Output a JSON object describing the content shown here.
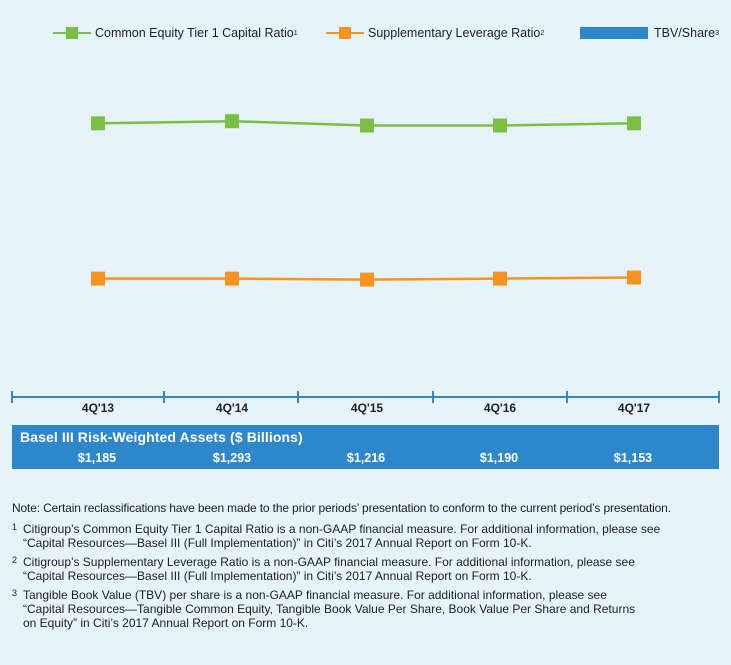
{
  "legend": {
    "cet1": "Common Equity Tier 1 Capital Ratio",
    "cet1_sup": "1",
    "slr": "Supplementary Leverage Ratio",
    "slr_sup": "2",
    "tbv": "TBV/Share",
    "tbv_sup": "3"
  },
  "colors": {
    "cet1": "#7ac143",
    "slr": "#f7941d",
    "tbv": "#2f87cb",
    "axis": "#2f87cb"
  },
  "chart_data": {
    "type": "line",
    "categories": [
      "4Q'13",
      "4Q'14",
      "4Q'15",
      "4Q'16",
      "4Q'17"
    ],
    "series": [
      {
        "name": "Common Equity Tier 1 Capital Ratio",
        "values": [
          12.6,
          12.7,
          12.5,
          12.5,
          12.6
        ]
      },
      {
        "name": "Supplementary Leverage Ratio",
        "values": [
          5.4,
          5.4,
          5.35,
          5.4,
          5.45
        ]
      }
    ],
    "ylim": [
      0,
      16
    ],
    "legend_position": "top",
    "values_shown": false
  },
  "rwa": {
    "title": "Basel III Risk-Weighted Assets ($ Billions)",
    "values": [
      "$1,185",
      "$1,293",
      "$1,216",
      "$1,190",
      "$1,153"
    ]
  },
  "notes": {
    "main": "Note: Certain reclassifications have been made to the prior periods’ presentation to conform to the current period’s presentation.",
    "footnotes": [
      {
        "mark": "1",
        "lines": [
          "Citigroup’s Common Equity Tier 1 Capital Ratio is a non-GAAP financial measure. For additional information, please see",
          "“Capital Resources—Basel III (Full Implementation)” in Citi’s 2017 Annual Report on Form 10-K."
        ]
      },
      {
        "mark": "2",
        "lines": [
          "Citigroup’s Supplementary Leverage Ratio is a non-GAAP financial measure. For additional information, please see",
          "“Capital Resources—Basel III (Full Implementation)” in Citi’s 2017 Annual Report on Form 10-K."
        ]
      },
      {
        "mark": "3",
        "lines": [
          "Tangible Book Value (TBV) per share is a non-GAAP financial measure. For additional information, please see",
          "“Capital Resources—Tangible Common Equity, Tangible Book Value Per Share, Book Value Per Share and Returns",
          "on Equity” in Citi’s 2017 Annual Report on Form 10-K."
        ]
      }
    ]
  }
}
